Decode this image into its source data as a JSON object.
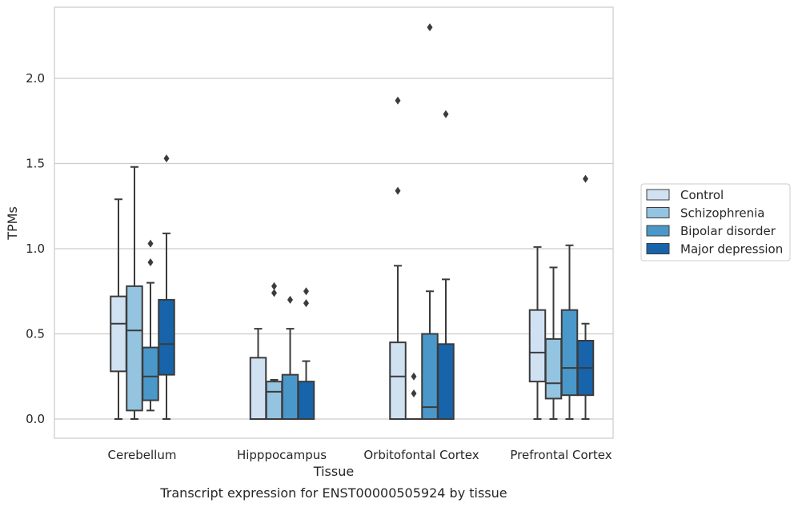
{
  "chart_data": {
    "type": "box",
    "title": "",
    "caption": "Transcript expression for ENST00000505924 by tissue",
    "xlabel": "Tissue",
    "ylabel": "TPMs",
    "ylim": [
      -0.11,
      2.43
    ],
    "yticks": [
      0.0,
      0.5,
      1.0,
      1.5,
      2.0
    ],
    "ytick_labels": [
      "0.0",
      "0.5",
      "1.0",
      "1.5",
      "2.0"
    ],
    "grid": "horizontal",
    "legend_position": "right",
    "categories": [
      "Cerebellum",
      "Hipppocampus",
      "Orbitofontal Cortex",
      "Prefrontal Cortex"
    ],
    "series": [
      {
        "name": "Control",
        "color": "#d0e1f2",
        "boxes": [
          {
            "q1": 0.28,
            "median": 0.56,
            "q3": 0.72,
            "whislo": 0.0,
            "whishi": 1.29,
            "fliers": []
          },
          {
            "q1": 0.0,
            "median": 0.0,
            "q3": 0.36,
            "whislo": 0.0,
            "whishi": 0.53,
            "fliers": []
          },
          {
            "q1": 0.0,
            "median": 0.25,
            "q3": 0.45,
            "whislo": 0.0,
            "whishi": 0.9,
            "fliers": [
              1.34,
              1.87
            ]
          },
          {
            "q1": 0.22,
            "median": 0.39,
            "q3": 0.64,
            "whislo": 0.0,
            "whishi": 1.01,
            "fliers": []
          }
        ]
      },
      {
        "name": "Schizophrenia",
        "color": "#94c4df",
        "boxes": [
          {
            "q1": 0.05,
            "median": 0.52,
            "q3": 0.78,
            "whislo": 0.0,
            "whishi": 1.48,
            "fliers": []
          },
          {
            "q1": 0.0,
            "median": 0.16,
            "q3": 0.22,
            "whislo": 0.0,
            "whishi": 0.23,
            "fliers": [
              0.74,
              0.78
            ]
          },
          {
            "q1": 0.0,
            "median": 0.0,
            "q3": 0.0,
            "whislo": 0.0,
            "whishi": 0.0,
            "fliers": [
              0.15,
              0.25
            ]
          },
          {
            "q1": 0.12,
            "median": 0.21,
            "q3": 0.47,
            "whislo": 0.0,
            "whishi": 0.89,
            "fliers": []
          }
        ]
      },
      {
        "name": "Bipolar disorder",
        "color": "#4a98c9",
        "boxes": [
          {
            "q1": 0.11,
            "median": 0.25,
            "q3": 0.42,
            "whislo": 0.05,
            "whishi": 0.8,
            "fliers": [
              0.92,
              1.03
            ]
          },
          {
            "q1": 0.0,
            "median": 0.0,
            "q3": 0.26,
            "whislo": 0.0,
            "whishi": 0.53,
            "fliers": [
              0.7
            ]
          },
          {
            "q1": 0.0,
            "median": 0.07,
            "q3": 0.5,
            "whislo": 0.0,
            "whishi": 0.75,
            "fliers": [
              2.3
            ]
          },
          {
            "q1": 0.14,
            "median": 0.3,
            "q3": 0.64,
            "whislo": 0.0,
            "whishi": 1.02,
            "fliers": []
          }
        ]
      },
      {
        "name": "Major depression",
        "color": "#1764ab",
        "boxes": [
          {
            "q1": 0.26,
            "median": 0.44,
            "q3": 0.7,
            "whislo": 0.0,
            "whishi": 1.09,
            "fliers": [
              1.53
            ]
          },
          {
            "q1": 0.0,
            "median": 0.0,
            "q3": 0.22,
            "whislo": 0.0,
            "whishi": 0.34,
            "fliers": [
              0.68,
              0.75
            ]
          },
          {
            "q1": 0.0,
            "median": 0.0,
            "q3": 0.44,
            "whislo": 0.0,
            "whishi": 0.82,
            "fliers": [
              1.79
            ]
          },
          {
            "q1": 0.14,
            "median": 0.3,
            "q3": 0.46,
            "whislo": 0.0,
            "whishi": 0.56,
            "fliers": [
              1.41
            ]
          }
        ]
      }
    ]
  }
}
